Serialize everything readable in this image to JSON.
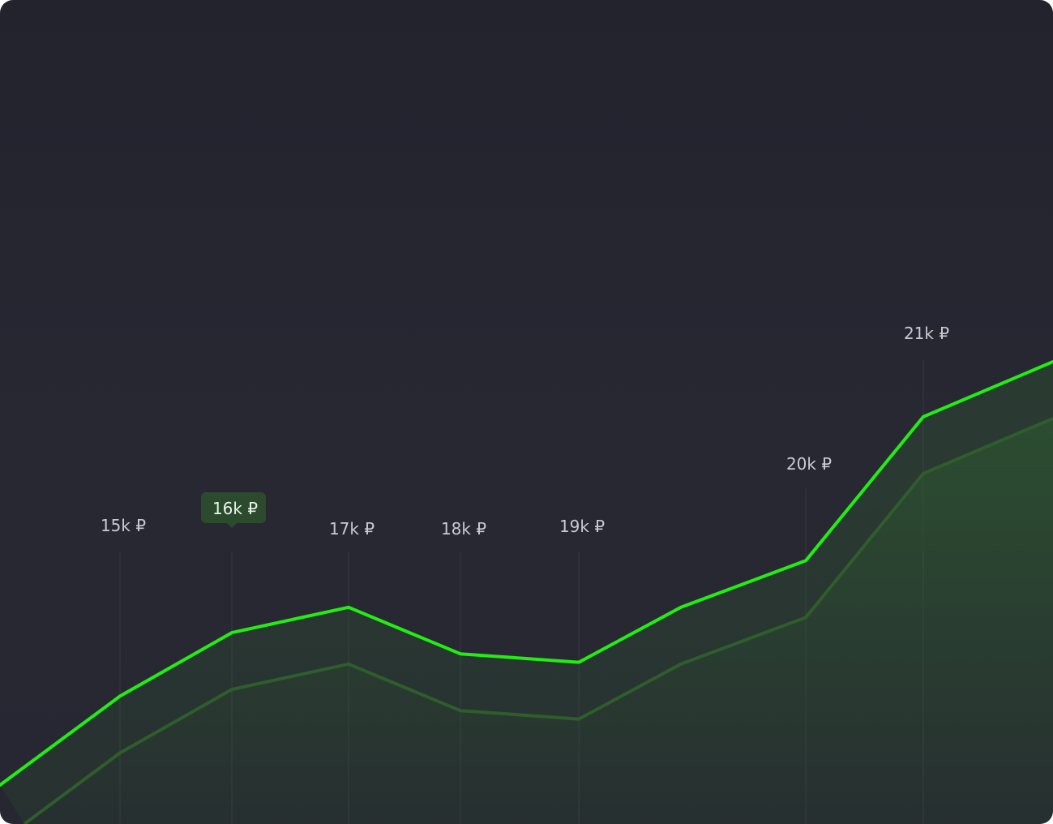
{
  "chart_data": {
    "type": "area",
    "title": "",
    "xlabel": "",
    "ylabel": "",
    "grid": false,
    "legend": "none",
    "x": [
      1,
      2,
      3,
      4,
      5,
      6
    ],
    "labels": [
      {
        "x": 1,
        "text": "15k ₽",
        "active": false
      },
      {
        "x": 2,
        "text": "16k ₽",
        "active": true
      },
      {
        "x": 3,
        "text": "17k ₽",
        "active": false
      },
      {
        "x": 4,
        "text": "18k ₽",
        "active": false
      },
      {
        "x": 5,
        "text": "19k ₽",
        "active": false
      },
      {
        "x": 6,
        "text": "20k ₽",
        "active": false
      },
      {
        "x": 7,
        "text": "21k ₽",
        "active": false
      }
    ],
    "series": [
      {
        "values": [
          {
            "x": 0,
            "y": 0.0
          },
          {
            "x": 1,
            "y": 2.1
          },
          {
            "x": 2,
            "y": 3.6
          },
          {
            "x": 3,
            "y": 4.2
          },
          {
            "x": 4,
            "y": 3.1
          },
          {
            "x": 5,
            "y": 2.9
          },
          {
            "x": 5.9,
            "y": 4.2
          },
          {
            "x": 6,
            "y": 5.3
          },
          {
            "x": 7,
            "y": 8.7
          },
          {
            "x": 8,
            "y": 10.0
          }
        ]
      }
    ],
    "colors": {
      "line": "#22ee11",
      "area": "#2a5a2a",
      "tooltip_bg": "#2c4a2e",
      "label": "#c9c9d0",
      "background": "#262631"
    }
  }
}
